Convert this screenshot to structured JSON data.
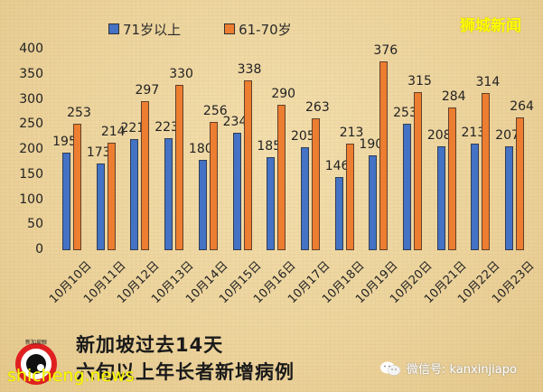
{
  "brand": "狮城新闻",
  "legend": [
    {
      "label": "71岁以上",
      "color": "#4472c4"
    },
    {
      "label": "61-70岁",
      "color": "#ed7d31"
    }
  ],
  "title_line1": "新加坡过去14天",
  "title_line2": "六旬以上年长者新增病例",
  "site": "shicheng.news",
  "wechat": "微信号: kanxinjiapo",
  "y_ticks": [
    "400",
    "350",
    "300",
    "250",
    "200",
    "150",
    "100",
    "50",
    "0"
  ],
  "chart_data": {
    "type": "bar",
    "title": "新加坡过去14天 六旬以上年长者新增病例",
    "xlabel": "",
    "ylabel": "",
    "ylim": [
      0,
      400
    ],
    "yticks": [
      0,
      50,
      100,
      150,
      200,
      250,
      300,
      350,
      400
    ],
    "grid": false,
    "legend_position": "top",
    "categories": [
      "10月10日",
      "10月11日",
      "10月12日",
      "10月13日",
      "10月14日",
      "10月15日",
      "10月16日",
      "10月17日",
      "10月18日",
      "10月19日",
      "10月20日",
      "10月21日",
      "10月22日",
      "10月23日"
    ],
    "series": [
      {
        "name": "71岁以上",
        "color": "#4472c4",
        "values": [
          195,
          173,
          221,
          223,
          180,
          234,
          185,
          205,
          146,
          190,
          253,
          208,
          213,
          207
        ]
      },
      {
        "name": "61-70岁",
        "color": "#ed7d31",
        "values": [
          253,
          214,
          297,
          330,
          256,
          338,
          290,
          263,
          213,
          376,
          315,
          284,
          314,
          264
        ]
      }
    ]
  }
}
